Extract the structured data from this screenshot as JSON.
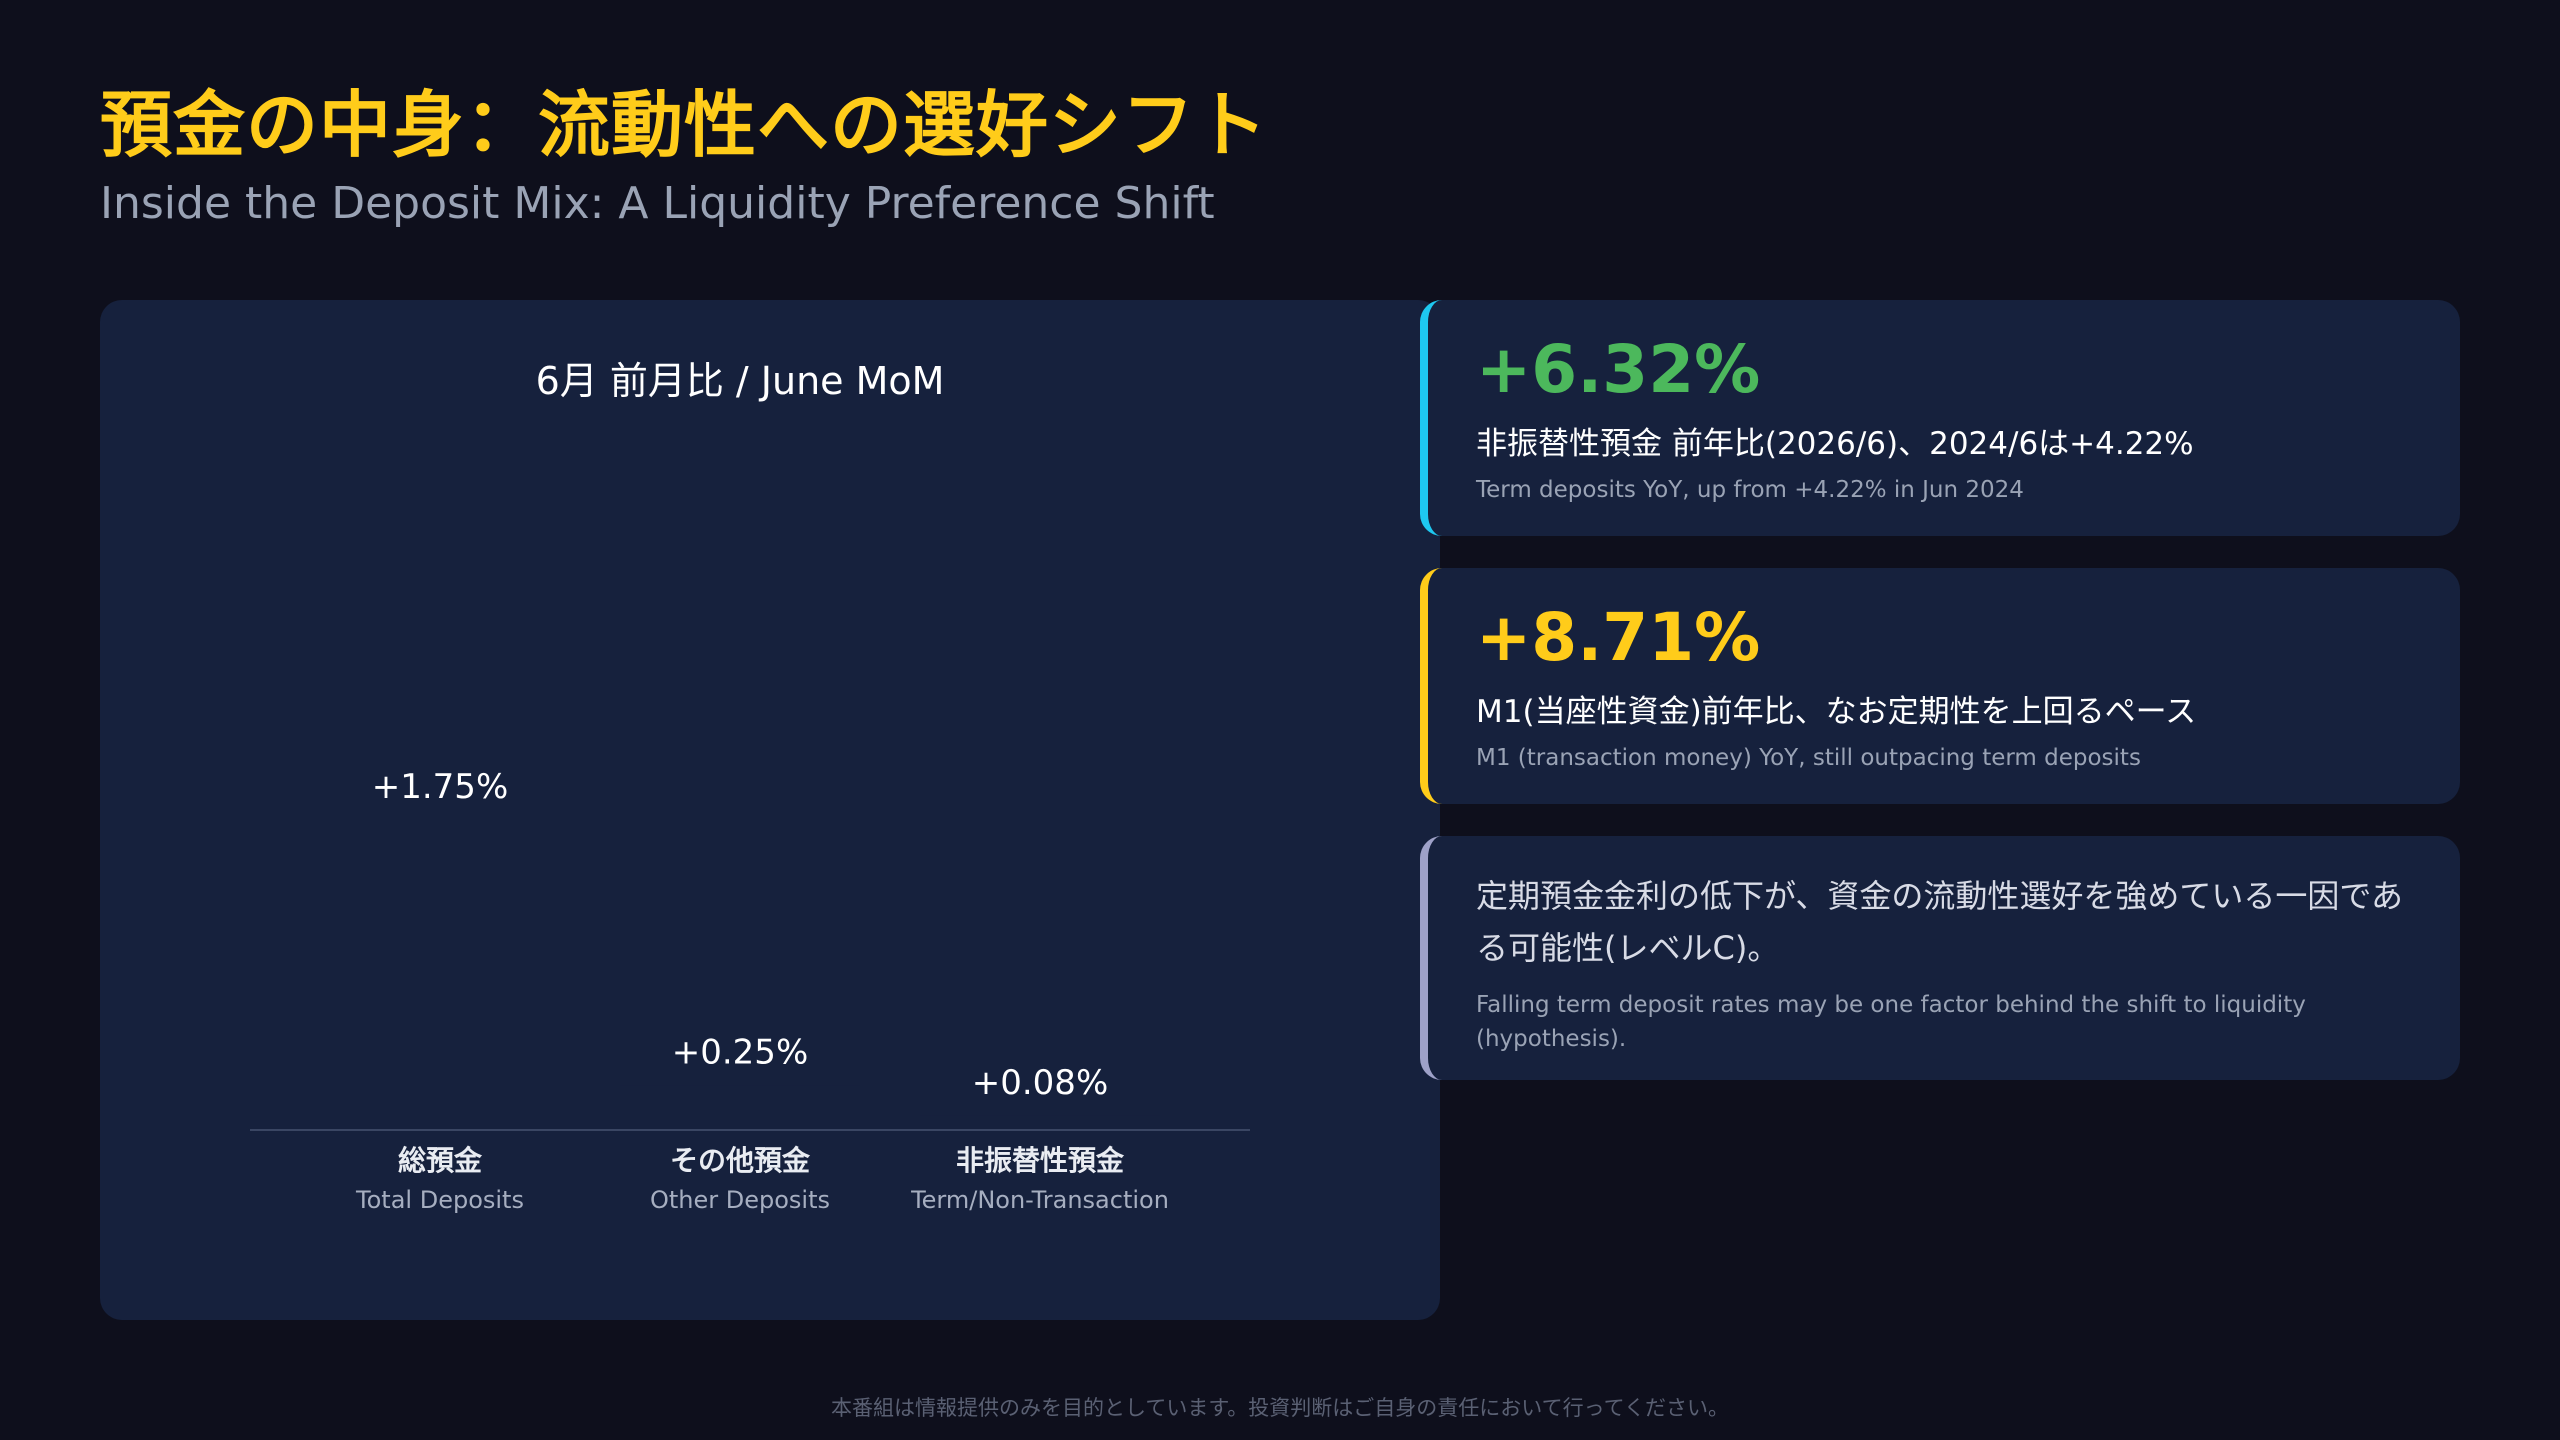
{
  "header": {
    "title": "預金の中身：流動性への選好シフト",
    "subtitle": "Inside the Deposit Mix: A Liquidity Preference Shift"
  },
  "chart_data": {
    "type": "bar",
    "title": "6月 前月比 / June MoM",
    "categories": [
      {
        "jp": "総預金",
        "en": "Total Deposits"
      },
      {
        "jp": "その他預金",
        "en": "Other Deposits"
      },
      {
        "jp": "非振替性預金",
        "en": "Term/Non-Transaction"
      }
    ],
    "values": [
      1.75,
      0.25,
      0.08
    ],
    "value_labels": [
      "+1.75%",
      "+0.25%",
      "+0.08%"
    ],
    "ylim": [
      0,
      1.75
    ],
    "grid": false,
    "bar_color": "#16213d"
  },
  "cards": [
    {
      "value": "+6.32%",
      "jp": "非振替性預金 前年比(2026/6)、2024/6は+4.22%",
      "en": "Term deposits YoY, up from +4.22% in Jun 2024",
      "accent": "#1ec8f0",
      "value_color": "#4cb85c"
    },
    {
      "value": "+8.71%",
      "jp": "M1(当座性資金)前年比、なお定期性を上回るペース",
      "en": "M1 (transaction money) YoY, still outpacing term deposits",
      "accent": "#ffcc1a",
      "value_color": "#ffcc1a"
    },
    {
      "jp": "定期預金金利の低下が、資金の流動性選好を強めている一因である可能性(レベルC)。",
      "en": "Falling term deposit rates may be one factor behind the shift to liquidity (hypothesis).",
      "accent": "#9ea1c8"
    }
  ],
  "footer": {
    "disclaimer": "本番組は情報提供のみを目的としています。投資判断はご自身の責任において行ってください。"
  }
}
